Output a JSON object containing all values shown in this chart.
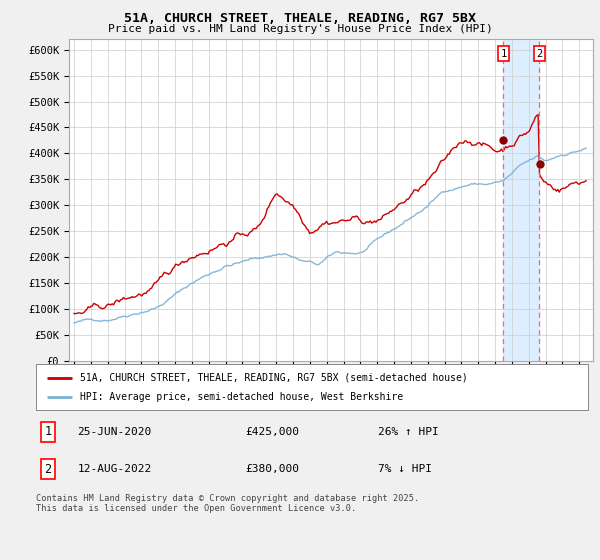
{
  "title": "51A, CHURCH STREET, THEALE, READING, RG7 5BX",
  "subtitle": "Price paid vs. HM Land Registry's House Price Index (HPI)",
  "ylim": [
    0,
    620000
  ],
  "yticks": [
    0,
    50000,
    100000,
    150000,
    200000,
    250000,
    300000,
    350000,
    400000,
    450000,
    500000,
    550000,
    600000
  ],
  "xlim_start": 1994.7,
  "xlim_end": 2025.8,
  "red_color": "#cc0000",
  "blue_color": "#7ab0d4",
  "shade_color": "#ddeeff",
  "transaction1_date": 2020.49,
  "transaction1_price": 425000,
  "transaction1_label": "1",
  "transaction2_date": 2022.62,
  "transaction2_price": 380000,
  "transaction2_label": "2",
  "legend1": "51A, CHURCH STREET, THEALE, READING, RG7 5BX (semi-detached house)",
  "legend2": "HPI: Average price, semi-detached house, West Berkshire",
  "table_row1_num": "1",
  "table_row1_date": "25-JUN-2020",
  "table_row1_price": "£425,000",
  "table_row1_hpi": "26% ↑ HPI",
  "table_row2_num": "2",
  "table_row2_date": "12-AUG-2022",
  "table_row2_price": "£380,000",
  "table_row2_hpi": "7% ↓ HPI",
  "footer": "Contains HM Land Registry data © Crown copyright and database right 2025.\nThis data is licensed under the Open Government Licence v3.0.",
  "background_color": "#f0f0f0",
  "plot_background": "#ffffff"
}
